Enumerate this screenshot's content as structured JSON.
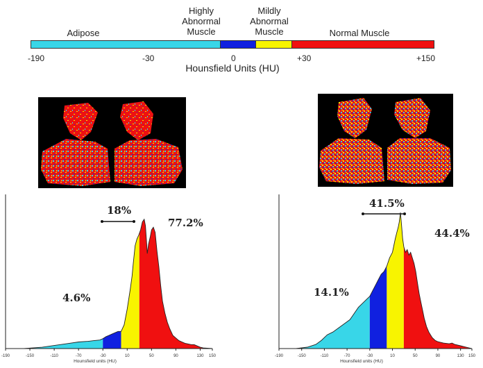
{
  "legend": {
    "categories": [
      {
        "label": "Adipose",
        "color": "#38d6e8"
      },
      {
        "label": "Highly\nAbnormal\nMuscle",
        "color": "#1020e0"
      },
      {
        "label": "Mildly\nAbnormal\nMuscle",
        "color": "#f8f400"
      },
      {
        "label": "Normal Muscle",
        "color": "#f01010"
      }
    ],
    "boundaries": [
      -190,
      -30,
      0,
      30,
      150
    ],
    "tick_labels": [
      "-190",
      "-30",
      "0",
      "+30",
      "+150"
    ],
    "axis_title": "Hounsfield Units (HU)"
  },
  "panels": [
    {
      "percent_adipose": "4.6%",
      "percent_abnormal": "18%",
      "percent_normal": "77.2%",
      "xlabel": "Hounsfield units (HU)",
      "ticks": [
        "-190",
        "-150",
        "-110",
        "-70",
        "-30",
        "10",
        "50",
        "90",
        "130",
        "150"
      ]
    },
    {
      "percent_adipose": "14.1%",
      "percent_abnormal": "41.5%",
      "percent_normal": "44.4%",
      "xlabel": "Hounsfield units (HU)",
      "ticks": [
        "-190",
        "-150",
        "-110",
        "-70",
        "-30",
        "10",
        "50",
        "90",
        "130",
        "150"
      ]
    }
  ]
}
